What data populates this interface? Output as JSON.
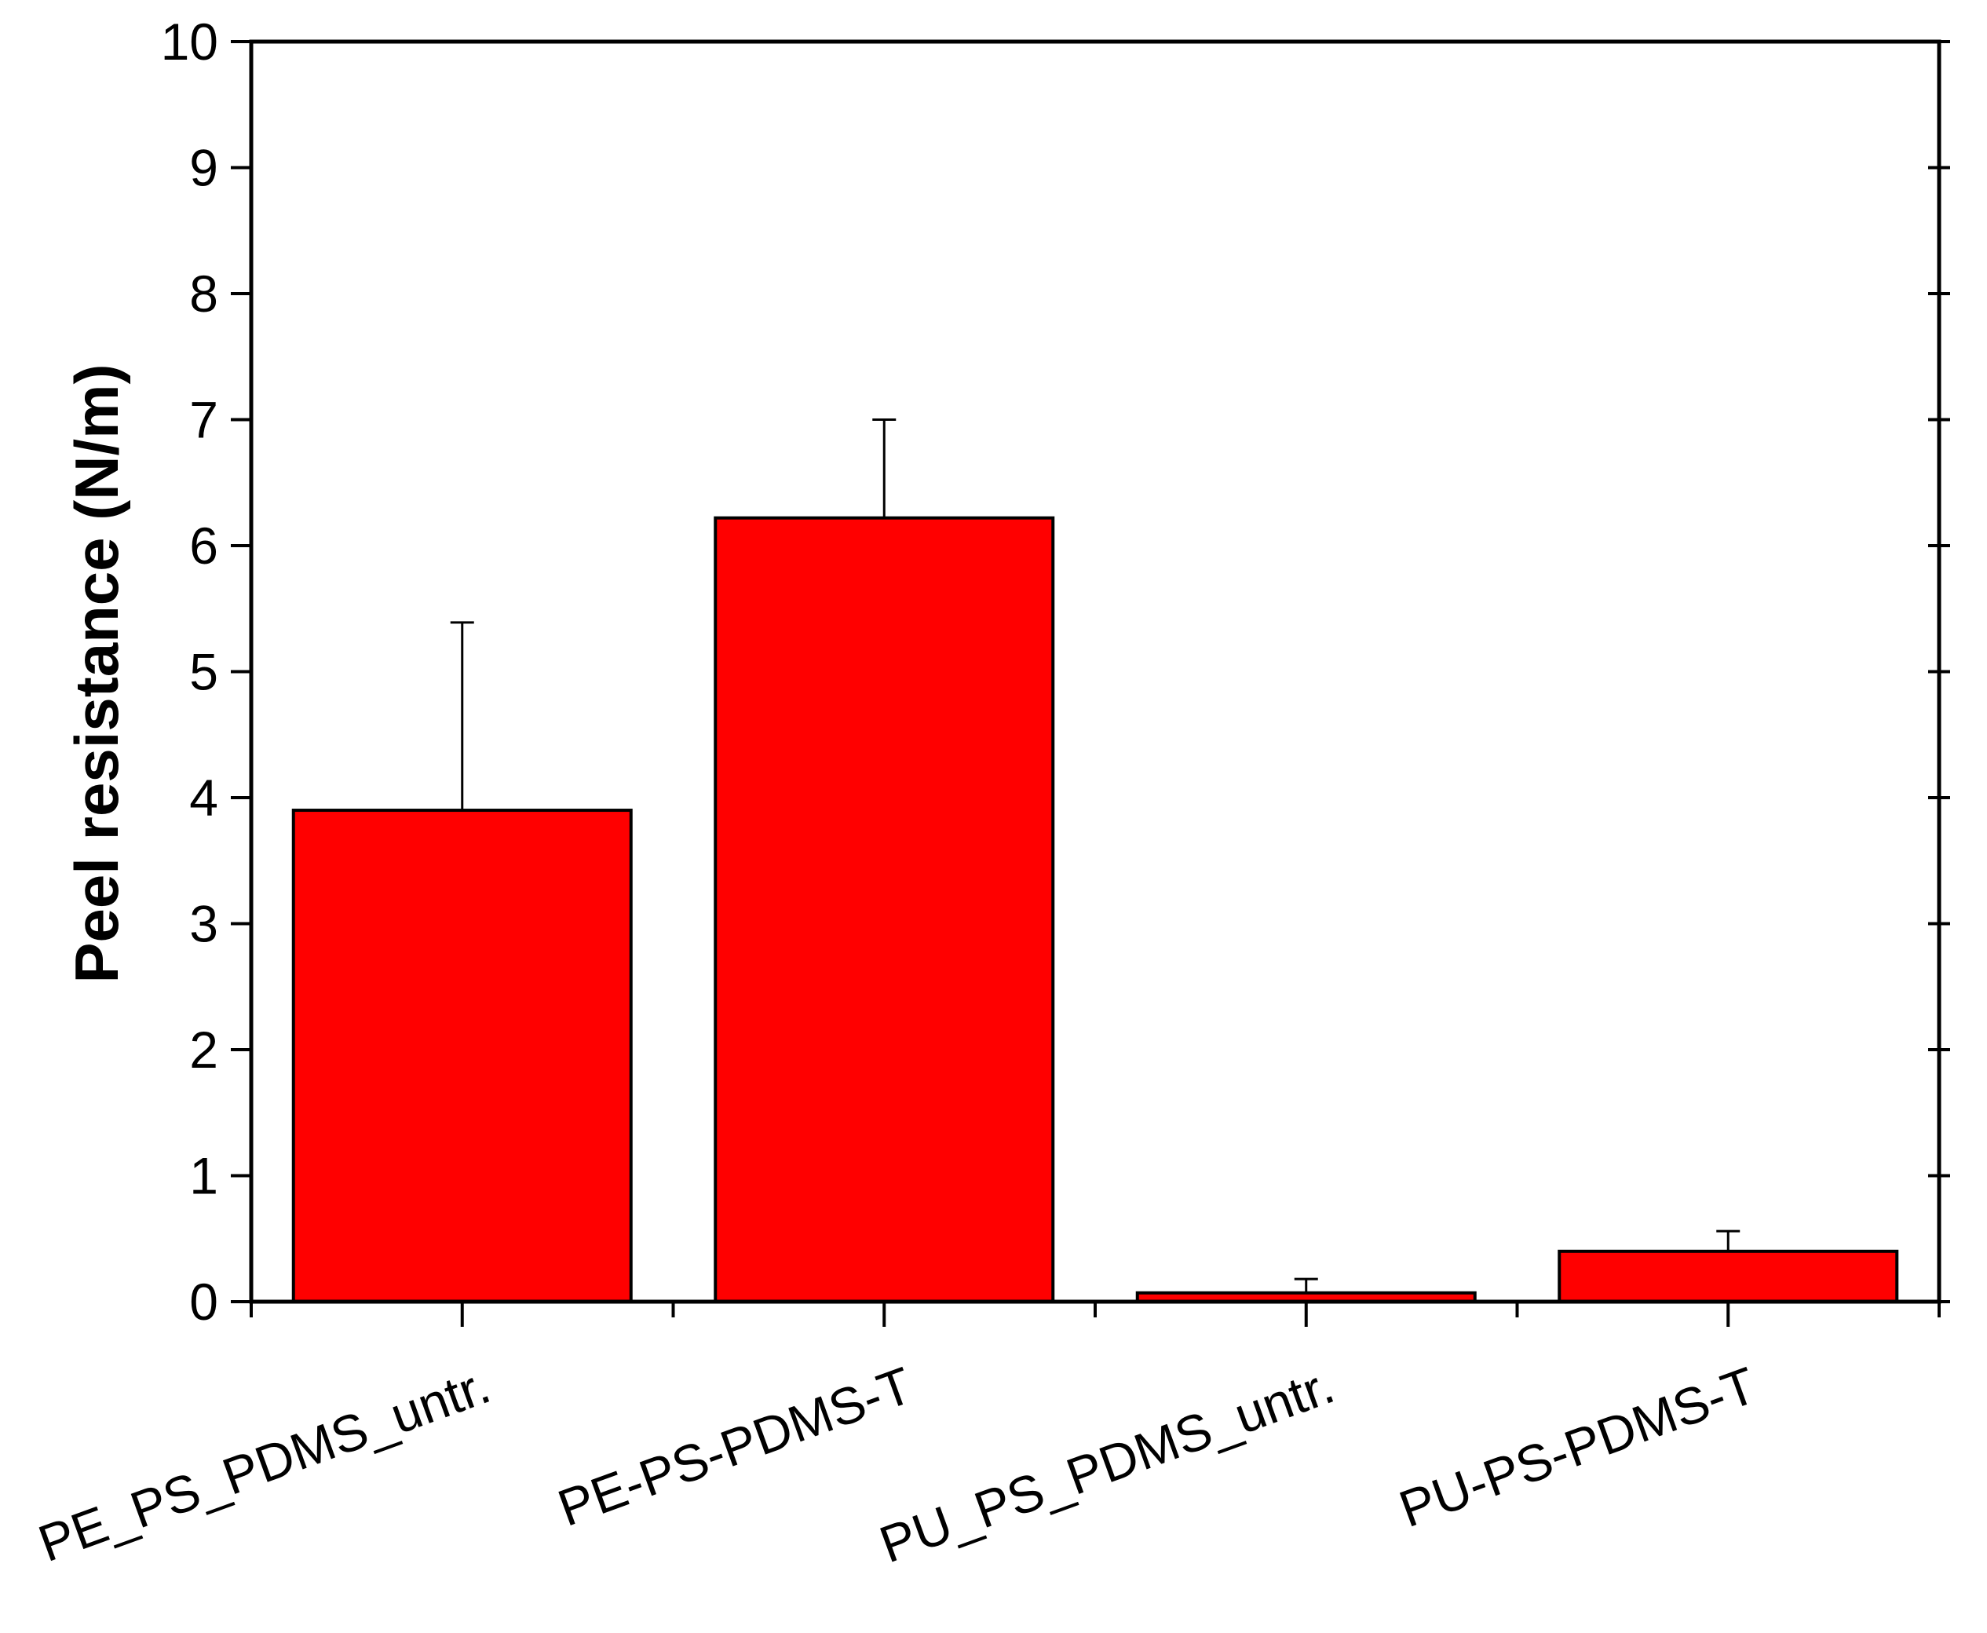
{
  "chart_data": {
    "type": "bar",
    "y_label": "Peel resistance (N/m)",
    "categories": [
      "PE_PS_PDMS_untr.",
      "PE-PS-PDMS-T",
      "PU_PS_PDMS_untr.",
      "PU-PS-PDMS-T"
    ],
    "values": [
      3.9,
      6.22,
      0.07,
      0.4
    ],
    "errors": [
      1.49,
      0.78,
      0.11,
      0.16
    ],
    "color": "#ff0000",
    "ylim": [
      0,
      10
    ],
    "yticks": [
      0,
      1,
      2,
      3,
      4,
      5,
      6,
      7,
      8,
      9,
      10
    ],
    "grid": false
  }
}
